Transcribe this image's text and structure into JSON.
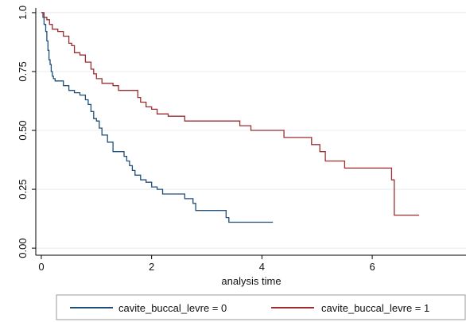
{
  "chart_data": {
    "type": "line",
    "step": true,
    "title": "",
    "xlabel": "analysis time",
    "ylabel": "",
    "xlim": [
      -0.1,
      7.7
    ],
    "ylim": [
      -0.03,
      1.02
    ],
    "xticks": [
      0,
      2,
      4,
      6
    ],
    "xtick_labels": [
      "0",
      "2",
      "4",
      "6"
    ],
    "yticks": [
      0,
      0.25,
      0.5,
      0.75,
      1.0
    ],
    "ytick_labels": [
      "0.00",
      "0.25",
      "0.50",
      "0.75",
      "1.0"
    ],
    "grid": "horizontal",
    "legend_position": "bottom",
    "colors": {
      "series0": "#1f4e79",
      "series1": "#9b2d30",
      "grid": "#e8ecef",
      "axis": "#000000"
    },
    "series": [
      {
        "name": "cavite_buccal_levre = 0",
        "x": [
          0,
          0.03,
          0.05,
          0.08,
          0.1,
          0.12,
          0.14,
          0.16,
          0.18,
          0.2,
          0.22,
          0.25,
          0.3,
          0.4,
          0.5,
          0.6,
          0.7,
          0.8,
          0.85,
          0.9,
          0.95,
          1.0,
          1.05,
          1.1,
          1.2,
          1.3,
          1.5,
          1.55,
          1.6,
          1.65,
          1.7,
          1.8,
          1.9,
          2.0,
          2.1,
          2.2,
          2.3,
          2.6,
          2.75,
          2.8,
          3.35,
          3.4,
          4.2
        ],
        "y": [
          1.0,
          0.98,
          0.95,
          0.92,
          0.88,
          0.84,
          0.8,
          0.78,
          0.75,
          0.73,
          0.72,
          0.71,
          0.71,
          0.69,
          0.67,
          0.66,
          0.65,
          0.63,
          0.61,
          0.58,
          0.55,
          0.54,
          0.51,
          0.48,
          0.45,
          0.41,
          0.39,
          0.37,
          0.35,
          0.33,
          0.31,
          0.29,
          0.28,
          0.26,
          0.25,
          0.23,
          0.23,
          0.21,
          0.19,
          0.16,
          0.13,
          0.11,
          0.11
        ]
      },
      {
        "name": "cavite_buccal_levre = 1",
        "x": [
          0,
          0.05,
          0.1,
          0.15,
          0.2,
          0.3,
          0.4,
          0.5,
          0.55,
          0.6,
          0.7,
          0.8,
          0.9,
          0.95,
          1.0,
          1.1,
          1.3,
          1.4,
          1.6,
          1.75,
          1.8,
          1.9,
          2.0,
          2.1,
          2.3,
          2.6,
          3.2,
          3.6,
          3.8,
          4.3,
          4.4,
          4.9,
          5.05,
          5.15,
          5.5,
          6.35,
          6.4,
          6.85
        ],
        "y": [
          1.0,
          0.98,
          0.97,
          0.95,
          0.93,
          0.92,
          0.9,
          0.87,
          0.86,
          0.83,
          0.82,
          0.79,
          0.76,
          0.74,
          0.72,
          0.7,
          0.69,
          0.67,
          0.67,
          0.64,
          0.62,
          0.6,
          0.59,
          0.57,
          0.56,
          0.54,
          0.54,
          0.52,
          0.5,
          0.5,
          0.47,
          0.44,
          0.41,
          0.37,
          0.34,
          0.29,
          0.14,
          0.14
        ]
      }
    ]
  }
}
